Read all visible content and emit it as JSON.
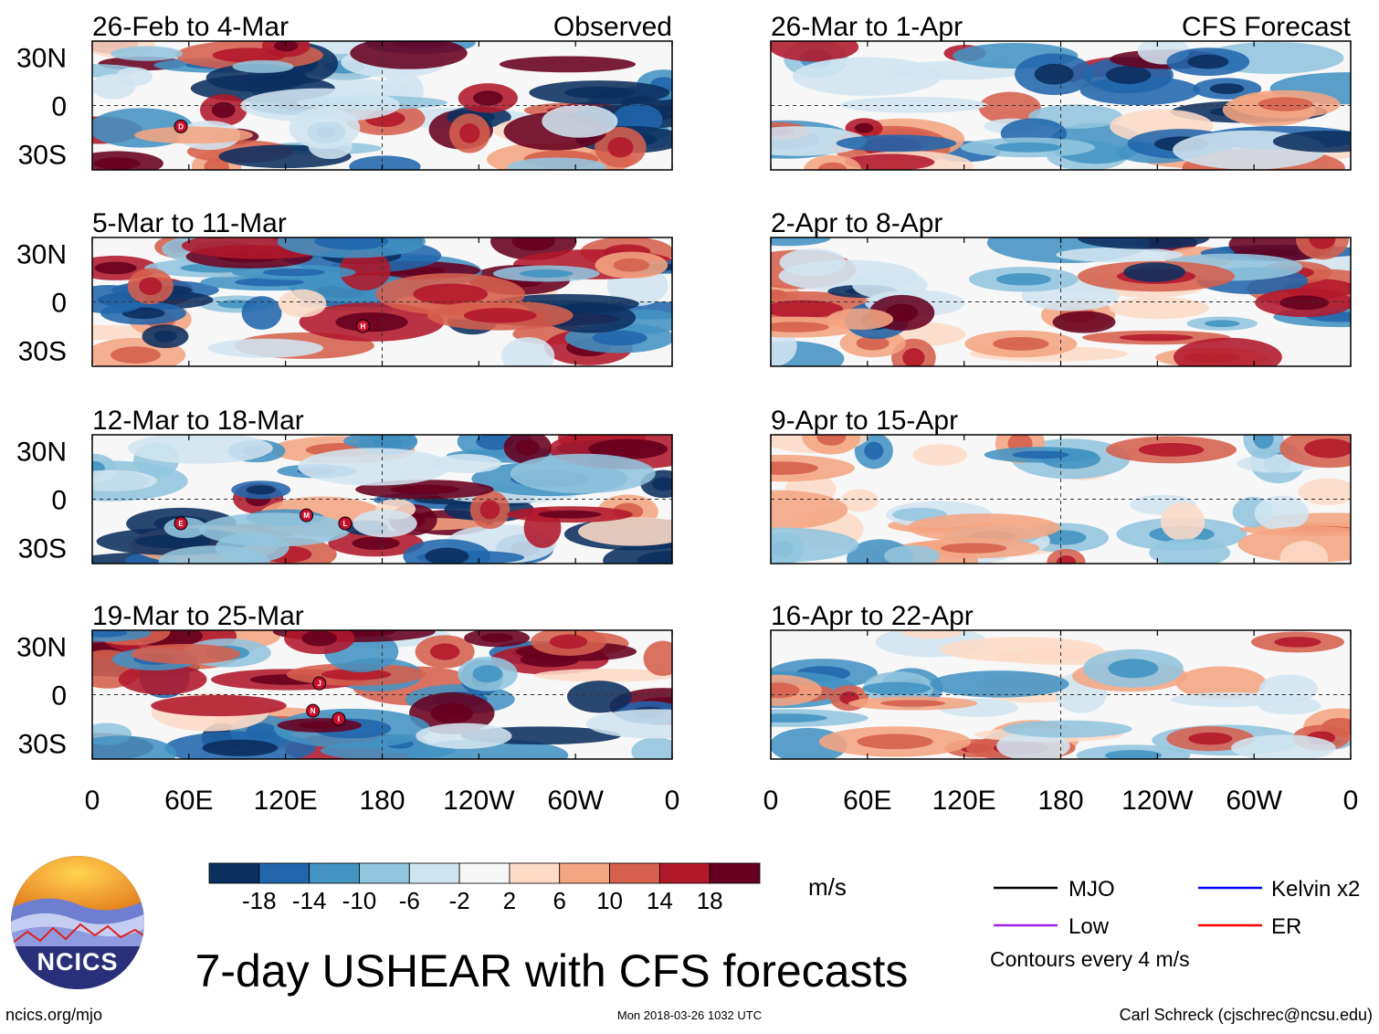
{
  "figure": {
    "title": "7-day USHEAR with CFS forecasts",
    "left_column_label": "Observed",
    "right_column_label": "CFS Forecast",
    "url": "ncics.org/mjo",
    "timestamp": "Mon 2018-03-26 1032 UTC",
    "author": "Carl Schreck (cjschrec@ncsu.edu)",
    "logo_text": "NCICS",
    "units": "m/s",
    "contour_note": "Contours every 4 m/s"
  },
  "chart_data": {
    "type": "heatmap",
    "variable": "USHEAR",
    "units": "m/s",
    "lat_ticks": [
      "30N",
      "0",
      "30S"
    ],
    "lon_ticks": [
      "0",
      "60E",
      "120E",
      "180",
      "120W",
      "60W",
      "0"
    ],
    "colorbar": {
      "levels": [
        "-18",
        "-14",
        "-10",
        "-6",
        "-2",
        "2",
        "6",
        "10",
        "14",
        "18"
      ],
      "colors": [
        "#0b2f5e",
        "#2166ac",
        "#4393c3",
        "#92c5de",
        "#d1e5f0",
        "#f7f7f7",
        "#fddbc7",
        "#f4a582",
        "#d6604d",
        "#b2182b",
        "#67001f"
      ]
    },
    "legend": [
      {
        "label": "MJO",
        "color": "#000000"
      },
      {
        "label": "Kelvin x2",
        "color": "#0000ff"
      },
      {
        "label": "Low",
        "color": "#a020f0"
      },
      {
        "label": "ER",
        "color": "#ff0000"
      }
    ],
    "panels": [
      {
        "period": "26-Feb to 4-Mar",
        "column": "observed",
        "label": "Observed",
        "storms": [
          {
            "lon": 55,
            "lat": -13,
            "letter": "D"
          }
        ]
      },
      {
        "period": "5-Mar to 11-Mar",
        "column": "observed",
        "storms": [
          {
            "lon": 168,
            "lat": -15,
            "letter": "H"
          }
        ]
      },
      {
        "period": "12-Mar to 18-Mar",
        "column": "observed",
        "storms": [
          {
            "lon": 55,
            "lat": -15,
            "letter": "E"
          },
          {
            "lon": 133,
            "lat": -10,
            "letter": "M"
          },
          {
            "lon": 157,
            "lat": -15,
            "letter": "L"
          }
        ]
      },
      {
        "period": "19-Mar to 25-Mar",
        "column": "observed",
        "storms": [
          {
            "lon": 141,
            "lat": 7,
            "letter": "J"
          },
          {
            "lon": 137,
            "lat": -10,
            "letter": "N"
          },
          {
            "lon": 153,
            "lat": -15,
            "letter": "I"
          }
        ]
      },
      {
        "period": "26-Mar to 1-Apr",
        "column": "forecast",
        "label": "CFS Forecast",
        "storms": []
      },
      {
        "period": "2-Apr to 8-Apr",
        "column": "forecast",
        "storms": []
      },
      {
        "period": "9-Apr to 15-Apr",
        "column": "forecast",
        "storms": []
      },
      {
        "period": "16-Apr to 22-Apr",
        "column": "forecast",
        "storms": []
      }
    ]
  }
}
